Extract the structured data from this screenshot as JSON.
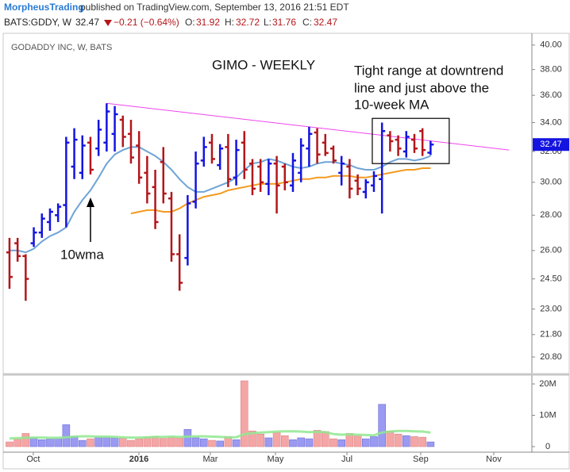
{
  "header": {
    "author": "MorpheusTrading",
    "published": "published on TradingView.com, September 13, 2016 21:51 EDT",
    "symbol": "BATS:GDDY, W",
    "change": "−0.21 (−0.64%)",
    "o_label": "O:",
    "h_label": "H:",
    "l_label": "L:",
    "c_label": "C:"
  },
  "chart_data": {
    "type": "ohlc",
    "title": "GODADDY INC, W, BATS",
    "annotations": {
      "title": "GIMO - WEEKLY",
      "note": [
        "Tight range at downtrend",
        "line and just above the",
        "10-week MA"
      ],
      "ma_label": "10wma"
    },
    "open": [
      25.9,
      26.4,
      25.7,
      26.4,
      27.0,
      27.6,
      28.0,
      28.6,
      31.0,
      30.6,
      32.6,
      32.2,
      32.6,
      33.2,
      34.2,
      33.2,
      32.4,
      30.6,
      29.7,
      31.3,
      29.0,
      25.8,
      25.6,
      28.8,
      31.4,
      32.6,
      31.1,
      32.3,
      30.3,
      32.6,
      31.2,
      31.0,
      29.9,
      31.2,
      31.0,
      29.8,
      30.6,
      32.2,
      33.3,
      32.6,
      32.2,
      30.6,
      31.0,
      30.1,
      29.4,
      29.8,
      30.2,
      33.1,
      32.8,
      32.0,
      32.8,
      33.4,
      31.92
    ],
    "high": [
      26.7,
      26.7,
      25.8,
      27.3,
      28.1,
      28.4,
      28.7,
      33.0,
      33.6,
      33.1,
      33.0,
      34.2,
      35.4,
      35.2,
      34.5,
      34.2,
      33.4,
      31.7,
      30.8,
      32.3,
      29.4,
      26.9,
      29.2,
      32.0,
      33.0,
      33.2,
      32.5,
      33.2,
      32.8,
      33.4,
      31.5,
      31.5,
      31.5,
      31.7,
      31.2,
      31.9,
      32.9,
      33.7,
      33.6,
      33.2,
      32.4,
      31.7,
      31.5,
      30.5,
      30.2,
      30.7,
      34.0,
      33.4,
      33.1,
      33.4,
      33.2,
      33.6,
      32.72
    ],
    "low": [
      24.0,
      25.4,
      23.4,
      26.2,
      26.7,
      27.1,
      27.6,
      27.3,
      30.2,
      30.2,
      30.5,
      31.7,
      32.0,
      32.0,
      32.3,
      31.2,
      29.9,
      28.7,
      27.2,
      28.7,
      25.4,
      23.9,
      25.2,
      28.4,
      31.0,
      31.2,
      30.8,
      29.7,
      29.8,
      30.2,
      29.2,
      29.4,
      29.2,
      28.1,
      29.5,
      29.4,
      30.0,
      31.0,
      31.2,
      31.7,
      31.2,
      29.8,
      29.0,
      29.2,
      29.0,
      29.4,
      28.1,
      32.0,
      31.7,
      31.6,
      31.9,
      31.7,
      31.76
    ],
    "close": [
      24.6,
      25.7,
      24.5,
      27.0,
      27.8,
      28.2,
      28.5,
      32.6,
      32.8,
      32.4,
      30.8,
      33.5,
      34.8,
      34.6,
      33.0,
      31.6,
      30.3,
      29.3,
      27.6,
      29.3,
      25.8,
      24.3,
      28.7,
      31.2,
      32.3,
      31.5,
      32.2,
      30.2,
      32.1,
      30.8,
      29.6,
      30.0,
      31.2,
      29.8,
      30.0,
      31.4,
      32.4,
      33.2,
      31.8,
      31.9,
      31.4,
      31.2,
      29.6,
      29.6,
      30.0,
      30.4,
      33.4,
      32.7,
      32.2,
      33.0,
      32.2,
      32.1,
      32.47
    ],
    "up_color": "#1414e0",
    "down_color": "#b3161b",
    "xlim": [
      -0.78,
      64.51
    ],
    "xticks": [
      {
        "value": 2.94,
        "label": "Oct"
      },
      {
        "value": 15.98,
        "label": "2016"
      },
      {
        "value": 24.8,
        "label": "Mar"
      },
      {
        "value": 32.84,
        "label": "May"
      },
      {
        "value": 41.67,
        "label": "Jul"
      },
      {
        "value": 50.78,
        "label": "Sep"
      },
      {
        "value": 59.8,
        "label": "Nov"
      }
    ],
    "ylim": [
      20.12,
      40.86
    ],
    "log_scale": true,
    "yticks": [
      {
        "value": 40,
        "label": "40.00"
      },
      {
        "value": 38,
        "label": "38.00"
      },
      {
        "value": 36,
        "label": "36.00"
      },
      {
        "value": 34,
        "label": "34.00"
      },
      {
        "value": 32,
        "label": "32.00"
      },
      {
        "value": 30,
        "label": "30.00"
      },
      {
        "value": 28,
        "label": "28.00"
      },
      {
        "value": 26,
        "label": "26.00"
      },
      {
        "value": 24.5,
        "label": "24.50"
      },
      {
        "value": 23,
        "label": "23.00"
      },
      {
        "value": 21.8,
        "label": "21.80"
      },
      {
        "value": 20.8,
        "label": "20.80"
      }
    ],
    "moving_averages": [
      {
        "color": "#6fa4d6",
        "values": [
          26.0,
          26.0,
          25.9,
          26.1,
          26.5,
          26.8,
          27.0,
          27.3,
          28.2,
          28.9,
          29.5,
          30.3,
          31.2,
          31.8,
          32.1,
          32.3,
          32.3,
          32.0,
          31.7,
          31.3,
          30.8,
          30.2,
          29.7,
          29.4,
          29.4,
          29.6,
          29.8,
          30.0,
          30.3,
          30.8,
          31.2,
          31.3,
          31.5,
          31.4,
          31.2,
          31.0,
          30.9,
          31.0,
          31.2,
          31.3,
          31.3,
          31.2,
          31.1,
          30.9,
          30.8,
          30.8,
          31.0,
          31.3,
          31.5,
          31.5,
          31.4,
          31.5,
          31.7
        ]
      },
      {
        "color": "#f39a1e",
        "values": [
          null,
          null,
          null,
          null,
          null,
          null,
          null,
          null,
          null,
          null,
          null,
          null,
          null,
          null,
          null,
          28.1,
          28.2,
          28.3,
          28.3,
          28.2,
          28.2,
          28.4,
          28.7,
          28.9,
          29.1,
          29.2,
          29.3,
          29.5,
          29.6,
          29.7,
          29.8,
          29.9,
          29.9,
          29.9,
          30.0,
          30.1,
          30.2,
          30.2,
          30.3,
          30.3,
          30.4,
          30.4,
          30.4,
          30.3,
          30.3,
          30.4,
          30.5,
          30.6,
          30.7,
          30.8,
          30.8,
          30.9,
          30.9
        ]
      }
    ],
    "trendline": {
      "color": "#ee44ee",
      "x": [
        12,
        61.7
      ],
      "values": [
        35.4,
        32.1
      ]
    },
    "box": {
      "x": [
        44.8,
        54.3
      ],
      "y": [
        31.2,
        34.3
      ]
    },
    "volume": {
      "up_color": "#9a9af2",
      "down_color": "#f4a6a6",
      "values": [
        1500000,
        2500000,
        4200000,
        2800000,
        2200000,
        2500000,
        2600000,
        7000000,
        3200000,
        2000000,
        2500000,
        3000000,
        3000000,
        2800000,
        2600000,
        2000000,
        2500000,
        3000000,
        3200000,
        2600000,
        3000000,
        2800000,
        5500000,
        2800000,
        2500000,
        2000000,
        1800000,
        3200000,
        2200000,
        21000000,
        5000000,
        4000000,
        2800000,
        4500000,
        3500000,
        2200000,
        2800000,
        2500000,
        5200000,
        4800000,
        2500000,
        2200000,
        4200000,
        3500000,
        2500000,
        3200000,
        13500000,
        5000000,
        4000000,
        3500000,
        3200000,
        3000000,
        1500000
      ],
      "ylim": [
        -1770000,
        22280000
      ],
      "yticks": [
        {
          "value": 20000000,
          "label": "20M"
        },
        {
          "value": 10000000,
          "label": "10M"
        },
        0
      ],
      "ma": {
        "color": "#90e890",
        "values": [
          2600000,
          2700000,
          2800000,
          2900000,
          2900000,
          2800000,
          2800000,
          3000000,
          3200000,
          3300000,
          3300000,
          3200000,
          3200000,
          3100000,
          3000000,
          2900000,
          2900000,
          3000000,
          3100000,
          3100000,
          3200000,
          3100000,
          3200000,
          3300000,
          3300000,
          3200000,
          3100000,
          3000000,
          3000000,
          4000000,
          4300000,
          4500000,
          4600000,
          4800000,
          4900000,
          4900000,
          4800000,
          4600000,
          4700000,
          4600000,
          4000000,
          3800000,
          3900000,
          3800000,
          3700000,
          3600000,
          4500000,
          4800000,
          5000000,
          5000000,
          4900000,
          4800000,
          4500000
        ]
      }
    }
  }
}
